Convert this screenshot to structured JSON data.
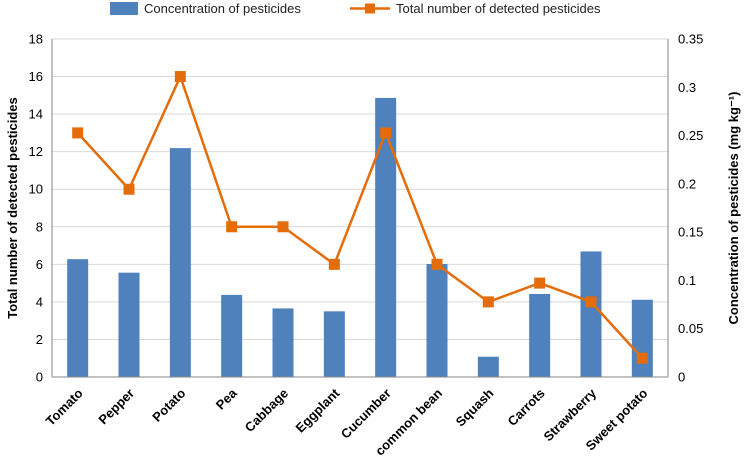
{
  "chart_data": {
    "type": "bar+line",
    "categories": [
      "Tomato",
      "Pepper",
      "Potato",
      "Pea",
      "Cabbage",
      "Eggplant",
      "Cucumber",
      "common bean",
      "Squash",
      "Carrots",
      "Strawberry",
      "Sweet potato"
    ],
    "series": [
      {
        "name": "Concentration of pesticides",
        "type": "bar",
        "axis": "right",
        "color": "#4f81bd",
        "values": [
          0.122,
          0.108,
          0.237,
          0.085,
          0.071,
          0.068,
          0.289,
          0.117,
          0.021,
          0.086,
          0.13,
          0.08
        ]
      },
      {
        "name": "Total number of detected pesticides",
        "type": "line",
        "axis": "left",
        "color": "#e46c0a",
        "values": [
          13,
          10,
          16,
          8,
          8,
          6,
          13,
          6,
          4,
          5,
          4,
          1
        ]
      }
    ],
    "y_left": {
      "label": "Total number of detected pesticides",
      "ylim": [
        0,
        18
      ],
      "ticks": [
        "0",
        "2",
        "4",
        "6",
        "8",
        "10",
        "12",
        "14",
        "16",
        "18"
      ]
    },
    "y_right": {
      "label": "Concentration of pesticides (mg kg⁻¹)",
      "ylim": [
        0,
        0.35
      ],
      "ticks": [
        "0",
        "0.05",
        "0.1",
        "0.15",
        "0.2",
        "0.25",
        "0.3",
        "0.35"
      ]
    },
    "grid": true,
    "legend": "top-center"
  }
}
